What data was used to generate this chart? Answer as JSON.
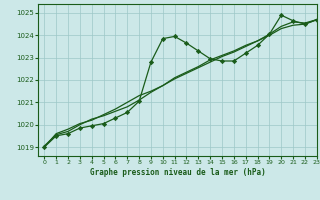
{
  "title": "Graphe pression niveau de la mer (hPa)",
  "background_color": "#cce8e8",
  "grid_color": "#9dc8c8",
  "line_color": "#1a5c1a",
  "xlim": [
    -0.5,
    23
  ],
  "ylim": [
    1018.6,
    1025.4
  ],
  "yticks": [
    1019,
    1020,
    1021,
    1022,
    1023,
    1024,
    1025
  ],
  "xticks": [
    0,
    1,
    2,
    3,
    4,
    5,
    6,
    7,
    8,
    9,
    10,
    11,
    12,
    13,
    14,
    15,
    16,
    17,
    18,
    19,
    20,
    21,
    22,
    23
  ],
  "series1_x": [
    0,
    1,
    2,
    3,
    4,
    5,
    6,
    7,
    8,
    9,
    10,
    11,
    12,
    13,
    14,
    15,
    16,
    17,
    18,
    19,
    20,
    21,
    22,
    23
  ],
  "series1_y": [
    1019.0,
    1019.5,
    1019.6,
    1019.85,
    1019.95,
    1020.05,
    1020.3,
    1020.55,
    1021.05,
    1022.8,
    1023.85,
    1023.95,
    1023.65,
    1023.3,
    1022.95,
    1022.85,
    1022.85,
    1023.2,
    1023.55,
    1024.05,
    1024.9,
    1024.65,
    1024.5,
    1024.7
  ],
  "series2_x": [
    0,
    1,
    2,
    3,
    4,
    5,
    6,
    7,
    8,
    9,
    10,
    11,
    12,
    13,
    14,
    15,
    16,
    17,
    18,
    19,
    20,
    21,
    22,
    23
  ],
  "series2_y": [
    1019.05,
    1019.55,
    1019.7,
    1020.0,
    1020.25,
    1020.4,
    1020.6,
    1020.8,
    1021.1,
    1021.45,
    1021.75,
    1022.1,
    1022.35,
    1022.6,
    1022.9,
    1023.1,
    1023.3,
    1023.55,
    1023.75,
    1024.0,
    1024.3,
    1024.45,
    1024.5,
    1024.7
  ],
  "series3_x": [
    0,
    1,
    2,
    3,
    4,
    5,
    6,
    7,
    8,
    9,
    10,
    11,
    12,
    13,
    14,
    15,
    16,
    17,
    18,
    19,
    20,
    21,
    22,
    23
  ],
  "series3_y": [
    1019.0,
    1019.6,
    1019.8,
    1020.05,
    1020.2,
    1020.45,
    1020.7,
    1021.0,
    1021.3,
    1021.5,
    1021.75,
    1022.05,
    1022.3,
    1022.55,
    1022.8,
    1023.05,
    1023.25,
    1023.5,
    1023.75,
    1024.05,
    1024.4,
    1024.6,
    1024.55,
    1024.7
  ]
}
